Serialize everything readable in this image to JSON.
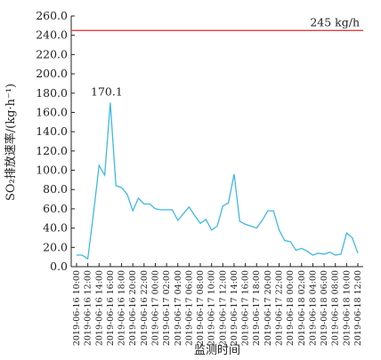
{
  "chart_data": {
    "type": "line",
    "xlabel": "监测时间",
    "ylabel": "SO₂排放速率/(kg·h⁻¹)",
    "ylim": [
      0,
      260
    ],
    "yticks": [
      "0.0",
      "20.0",
      "40.0",
      "60.0",
      "80.0",
      "100.0",
      "120.0",
      "140.0",
      "160.0",
      "180.0",
      "200.0",
      "220.0",
      "240.0",
      "260.0"
    ],
    "xticks": [
      "2019-06-16 10:00",
      "2019-06-16 12:00",
      "2019-06-16 14:00",
      "2019-06-16 16:00",
      "2019-06-16 18:00",
      "2019-06-16 20:00",
      "2019-06-16 22:00",
      "2019-06-17 00:00",
      "2019-06-17 02:00",
      "2019-06-17 04:00",
      "2019-06-17 06:00",
      "2019-06-17 08:00",
      "2019-06-17 10:00",
      "2019-06-17 12:00",
      "2019-06-17 14:00",
      "2019-06-17 16:00",
      "2019-06-17 18:00",
      "2019-06-17 20:00",
      "2019-06-17 22:00",
      "2019-06-18 00:00",
      "2019-06-18 02:00",
      "2019-06-18 04:00",
      "2019-06-18 06:00",
      "2019-06-18 08:00",
      "2019-06-18 10:00",
      "2019-06-18 12:00"
    ],
    "series": [
      {
        "color": "#3fb8e6",
        "values": [
          12,
          12,
          8,
          55,
          105,
          95,
          170.1,
          84,
          82,
          75,
          58,
          71,
          65,
          65,
          60,
          59,
          59,
          59,
          48,
          55,
          62,
          53,
          45,
          49,
          38,
          42,
          63,
          66,
          96,
          47,
          44,
          42,
          40,
          48,
          58,
          58,
          38,
          27,
          26,
          17,
          19,
          16,
          12,
          14,
          13,
          15,
          12,
          13,
          35,
          30,
          14
        ]
      }
    ],
    "reference_line": {
      "value": 245,
      "label": "245 kg/h",
      "color": "#e04040"
    },
    "annotations": [
      {
        "index": 6,
        "text": "170.1"
      }
    ]
  }
}
